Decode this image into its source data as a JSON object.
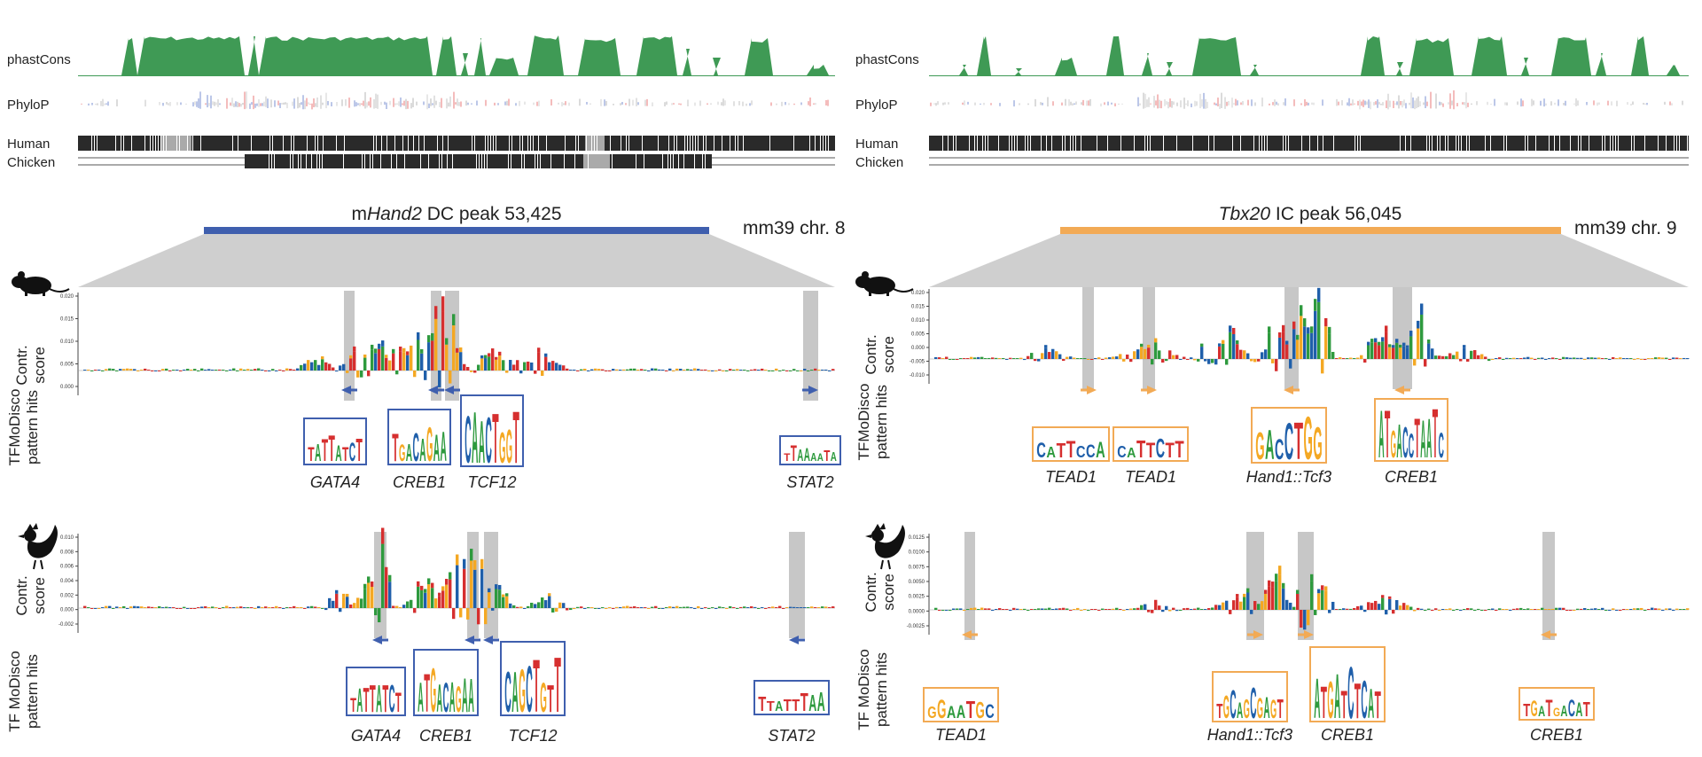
{
  "colors": {
    "conservation": "#3f9a55",
    "blue_peak": "#3f5fae",
    "orange_peak": "#f2aa55",
    "gray_region": "#cfcfcf",
    "highlight": "#bdbdbd",
    "base_A": "#2e9a3e",
    "base_C": "#1f5faa",
    "base_G": "#f4a823",
    "base_T": "#d62f2f"
  },
  "track_labels": {
    "phastcons": "phastCons",
    "phylop": "PhyloP",
    "human": "Human",
    "chicken": "Chicken",
    "contr_line1": "Contr.",
    "contr_line2": "score",
    "tfmodisco_line1": "TFMoDisco",
    "tfmodisco_line2": "pattern hits",
    "tf_modisco_line1": "TF MoDisco",
    "tf_modisco_line2": "pattern hits"
  },
  "panels": [
    {
      "id": "left",
      "peak_prefix": "m",
      "peak_gene": "Hand2",
      "peak_suffix": " DC peak 53,425",
      "assembly": "mm39 chr. 8",
      "mouse_track": {
        "y_ticks": [
          "0.020",
          "0.015",
          "0.010",
          "0.005",
          "0.000"
        ],
        "hits": [
          {
            "label": "GATA4",
            "logo": "TATTATCT",
            "direction": "left"
          },
          {
            "label": "CREB1",
            "logo": "TGACAGAA",
            "direction": "left"
          },
          {
            "label": "TCF12",
            "logo": "CAACTGGT",
            "direction": "left"
          },
          {
            "label": "STAT2",
            "logo": "TTAAAATA",
            "direction": "right"
          }
        ]
      },
      "chicken_track": {
        "y_ticks": [
          "0.010",
          "0.008",
          "0.006",
          "0.004",
          "0.002",
          "0.000",
          "-0.002"
        ],
        "hits": [
          {
            "label": "GATA4",
            "logo": "TATTATCT",
            "direction": "left"
          },
          {
            "label": "CREB1",
            "logo": "ATGACAGAA",
            "direction": "left"
          },
          {
            "label": "TCF12",
            "logo": "CAGCTGTT",
            "direction": "left"
          },
          {
            "label": "STAT2",
            "logo": "TTATTTAA",
            "direction": "left"
          }
        ]
      }
    },
    {
      "id": "right",
      "peak_prefix": "",
      "peak_gene": "Tbx20",
      "peak_suffix": " IC peak 56,045",
      "assembly": "mm39 chr. 9",
      "mouse_track": {
        "y_ticks": [
          "0.020",
          "0.015",
          "0.010",
          "0.005",
          "0.000",
          "-0.005",
          "-0.010"
        ],
        "hits": [
          {
            "label": "TEAD1",
            "logo": "CATTCCA",
            "direction": "right"
          },
          {
            "label": "TEAD1",
            "logo": "CATTCTT",
            "direction": "right"
          },
          {
            "label": "Hand1::Tcf3",
            "logo": "GACCTGG",
            "direction": "left"
          },
          {
            "label": "CREB1",
            "logo": "ATGACCTAATC",
            "direction": "left"
          }
        ]
      },
      "chicken_track": {
        "y_ticks": [
          "0.0125",
          "0.0100",
          "0.0075",
          "0.0050",
          "0.0025",
          "0.0000",
          "-0.0025"
        ],
        "hits": [
          {
            "label": "TEAD1",
            "logo": "GGAATGC",
            "direction": "left"
          },
          {
            "label": "Hand1::Tcf3",
            "logo": "TGCAGCGAGT",
            "direction": "right"
          },
          {
            "label": "CREB1",
            "logo": "ATGATCTCAT",
            "direction": "right"
          },
          {
            "label": "CREB1",
            "logo": "TGATGACAT",
            "direction": "left"
          }
        ]
      }
    }
  ]
}
